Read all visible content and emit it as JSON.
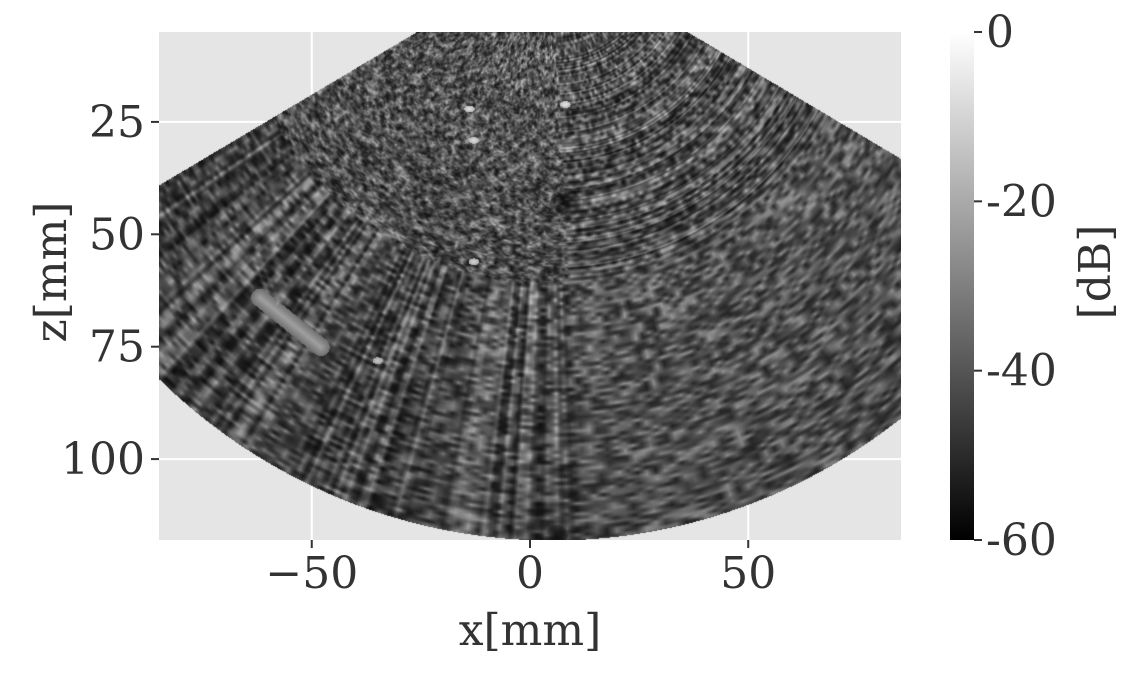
{
  "chart_data": {
    "type": "heatmap",
    "title": "",
    "xlabel": "x[mm]",
    "ylabel": "z[mm]",
    "xlim": [
      -85,
      85
    ],
    "ylim": [
      118,
      5
    ],
    "y_inverted": true,
    "grid": true,
    "xticks": [
      {
        "value": -50,
        "label": "−50"
      },
      {
        "value": 0,
        "label": "0"
      },
      {
        "value": 50,
        "label": "50"
      }
    ],
    "yticks": [
      {
        "value": 25,
        "label": "25"
      },
      {
        "value": 50,
        "label": "50"
      },
      {
        "value": 75,
        "label": "75"
      },
      {
        "value": 100,
        "label": "100"
      }
    ],
    "colorbar": {
      "label": "[dB]",
      "range": [
        -60,
        0
      ],
      "colormap": "gray",
      "ticks": [
        {
          "value": 0,
          "label": "0"
        },
        {
          "value": -20,
          "label": "-20"
        },
        {
          "value": -40,
          "label": "-40"
        },
        {
          "value": -60,
          "label": "-60"
        }
      ]
    },
    "image": {
      "description": "B-mode ultrasound speckle image in a sector (fan) shape",
      "sector_apex_x": 5,
      "sector_apex_z": -13,
      "sector_half_angle_deg": 60,
      "sector_inner_radius_mm": 16,
      "sector_outer_radius_mm": 131,
      "features": [
        {
          "type": "anechoic_cyst",
          "x": 8,
          "z": 43,
          "radius": 3.5
        },
        {
          "type": "anechoic_cyst",
          "x": 6,
          "z": 117,
          "radius": 2.5
        },
        {
          "type": "point_target",
          "x": -14,
          "z": 22
        },
        {
          "type": "point_target",
          "x": -13,
          "z": 29
        },
        {
          "type": "point_target",
          "x": -13,
          "z": 56
        },
        {
          "type": "point_target",
          "x": -35,
          "z": 78
        },
        {
          "type": "point_target",
          "x": 8,
          "z": 21
        },
        {
          "type": "bright_streak",
          "x0": -62,
          "z0": 64,
          "x1": -48,
          "z1": 75
        }
      ]
    },
    "colors": {
      "plot_background": "#e5e5e5",
      "grid": "#ffffff",
      "text": "#333333"
    }
  }
}
